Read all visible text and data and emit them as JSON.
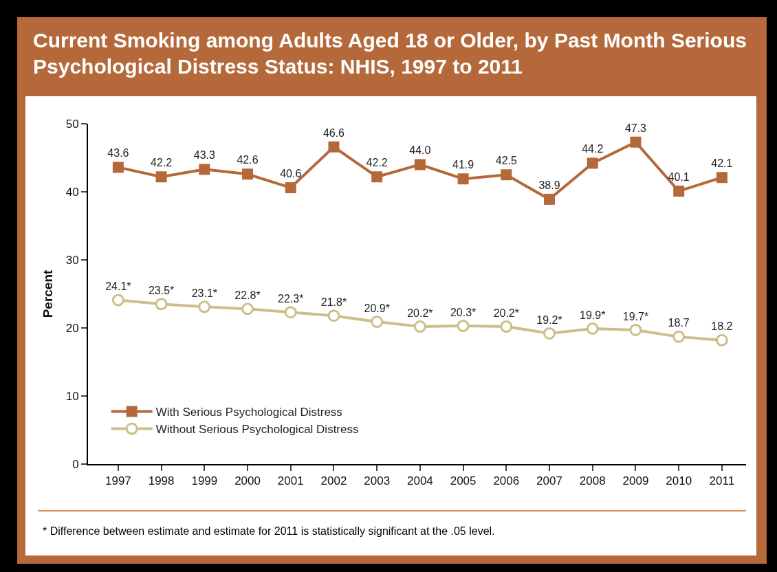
{
  "chart_data": {
    "type": "line",
    "title": "Current Smoking among Adults Aged 18 or Older, by Past Month Serious Psychological Distress Status: NHIS, 1997 to 2011",
    "ylabel": "Percent",
    "categories": [
      "1997",
      "1998",
      "1999",
      "2000",
      "2001",
      "2002",
      "2003",
      "2004",
      "2005",
      "2006",
      "2007",
      "2008",
      "2009",
      "2010",
      "2011"
    ],
    "series": [
      {
        "name": "With Serious Psychological Distress",
        "color": "#b5693a",
        "marker": "square",
        "values": [
          43.6,
          42.2,
          43.3,
          42.6,
          40.6,
          46.6,
          42.2,
          44.0,
          41.9,
          42.5,
          38.9,
          44.2,
          47.3,
          40.1,
          42.1
        ],
        "value_labels": [
          "43.6",
          "42.2",
          "43.3",
          "42.6",
          "40.6",
          "46.6",
          "42.2",
          "44.0",
          "41.9",
          "42.5",
          "38.9",
          "44.2",
          "47.3",
          "40.1",
          "42.1"
        ]
      },
      {
        "name": "Without Serious Psychological Distress",
        "color": "#cdbf8a",
        "marker": "circle",
        "values": [
          24.1,
          23.5,
          23.1,
          22.8,
          22.3,
          21.8,
          20.9,
          20.2,
          20.3,
          20.2,
          19.2,
          19.9,
          19.7,
          18.7,
          18.2
        ],
        "value_labels": [
          "24.1*",
          "23.5*",
          "23.1*",
          "22.8*",
          "22.3*",
          "21.8*",
          "20.9*",
          "20.2*",
          "20.3*",
          "20.2*",
          "19.2*",
          "19.9*",
          "19.7*",
          "18.7",
          "18.2"
        ]
      }
    ],
    "ylim": [
      0,
      50
    ],
    "yticks": [
      0,
      10,
      20,
      30,
      40,
      50
    ],
    "grid": false,
    "legend": "bottom left",
    "line_style": "solid",
    "annotations": [
      "* Difference between estimate and estimate for 2011 is statistically significant at the .05 level."
    ]
  }
}
